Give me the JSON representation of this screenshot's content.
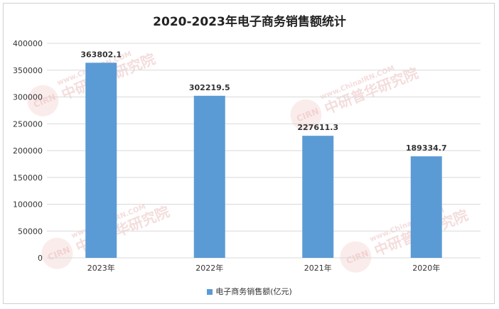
{
  "chart_data": {
    "type": "bar",
    "title": "2020-2023年电子商务销售额统计",
    "categories": [
      "2023年",
      "2022年",
      "2021年",
      "2020年"
    ],
    "series": [
      {
        "name": "电子商务销售额(亿元)",
        "values": [
          363802.1,
          302219.5,
          227611.3,
          189334.7
        ],
        "color": "#5b9bd5"
      }
    ],
    "data_labels": [
      "363802.1",
      "302219.5",
      "227611.3",
      "189334.7"
    ],
    "yticks": [
      "0",
      "50000",
      "100000",
      "150000",
      "200000",
      "250000",
      "300000",
      "350000",
      "400000"
    ],
    "ylim": [
      0,
      400000
    ],
    "grid": true,
    "legend_position": "bottom"
  },
  "watermark": {
    "text": "www.ChinaIRN.COM",
    "brand": "中研普华研究院",
    "logo": "CIRN"
  }
}
